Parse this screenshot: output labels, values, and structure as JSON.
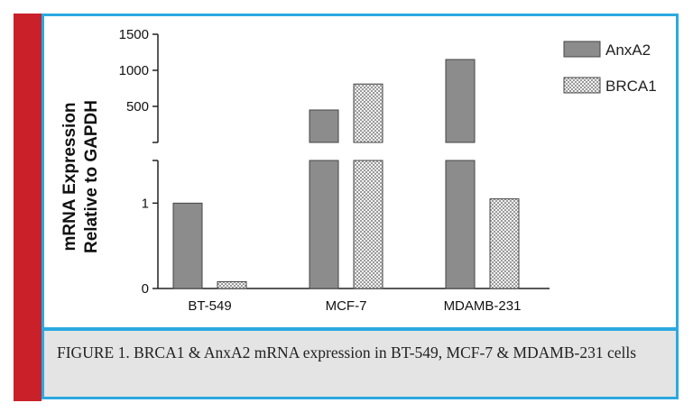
{
  "figure": {
    "caption": "FIGURE 1. BRCA1 & AnxA2 mRNA expression in BT-549, MCF-7 & MDAMB-231 cells"
  },
  "colors": {
    "accent": "#c9202a",
    "border": "#2aa9e0",
    "caption_bg": "#e4e4e4",
    "anxa2": "#8c8c8c",
    "brca1_pattern": "#b8b8b8"
  },
  "chart_data": {
    "type": "bar",
    "title": "",
    "xlabel": "",
    "ylabel": "mRNA Expression Relative to GAPDH",
    "ylabel_lines": [
      "mRNA Expression",
      "Relative to GAPDH"
    ],
    "categories": [
      "BT-549",
      "MCF-7",
      "MDAMB-231"
    ],
    "series": [
      {
        "name": "AnxA2",
        "values": [
          1,
          450,
          1150
        ],
        "fill": "solid-gray"
      },
      {
        "name": "BRCA1",
        "values": [
          0.08,
          810,
          1.05
        ],
        "fill": "crosshatch"
      }
    ],
    "broken_axis": true,
    "lower_segment": {
      "ylim": [
        0,
        1.5
      ],
      "ticks": [
        "0",
        "1"
      ],
      "tick_values": [
        0,
        1
      ]
    },
    "upper_segment": {
      "ylim": [
        0,
        1500
      ],
      "ticks": [
        "500",
        "1000",
        "1500"
      ],
      "tick_values": [
        500,
        1000,
        1500
      ]
    },
    "legend_position": "top-right",
    "grid": false
  }
}
